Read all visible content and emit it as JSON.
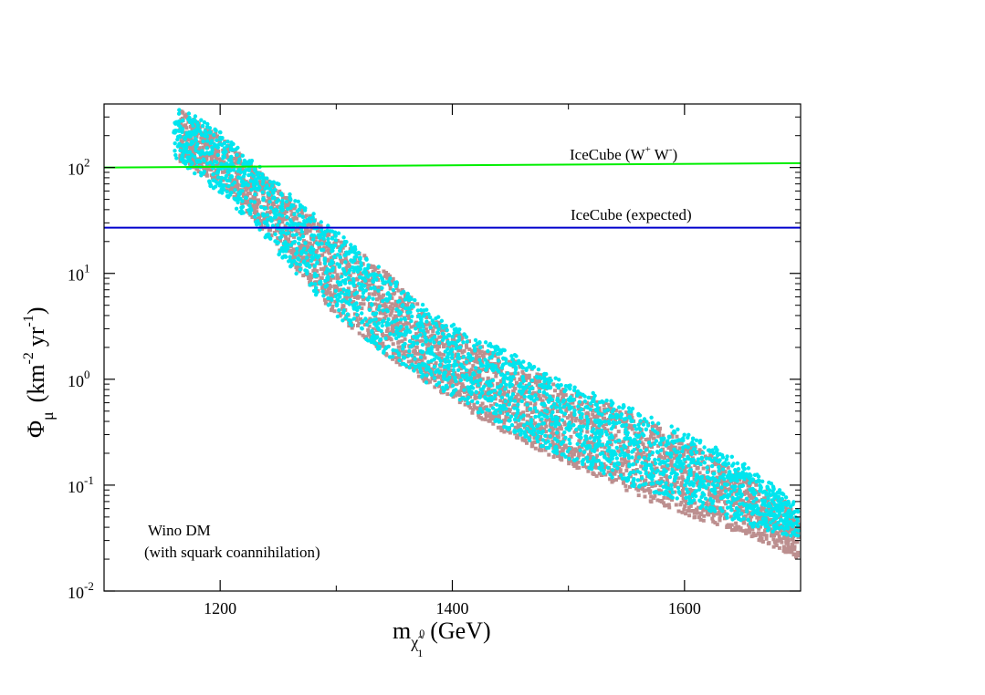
{
  "chart_data": {
    "type": "scatter",
    "xlim": [
      1100,
      1700
    ],
    "ylim_log10": [
      -2,
      2.6
    ],
    "y_scale": "log",
    "x_ticks": [
      {
        "value": 1200,
        "label": "1200"
      },
      {
        "value": 1400,
        "label": "1400"
      },
      {
        "value": 1600,
        "label": "1600"
      }
    ],
    "y_ticks": [
      {
        "exp": -2,
        "base": "10",
        "sup": "-2"
      },
      {
        "exp": -1,
        "base": "10",
        "sup": "-1"
      },
      {
        "exp": 0,
        "base": "10",
        "sup": "0"
      },
      {
        "exp": 1,
        "base": "10",
        "sup": "1"
      },
      {
        "exp": 2,
        "base": "10",
        "sup": "2"
      }
    ],
    "xlabel": {
      "main": "m",
      "sub": "χ̃",
      "sub_sup": "0",
      "sub_sub": "1",
      "unit": "(GeV)"
    },
    "ylabel": {
      "main": "Φ",
      "sub": "μ",
      "unit_open": "(km",
      "sup1": "-2",
      "mid": "yr",
      "sup2": "-1",
      "unit_close": ")"
    },
    "lines": [
      {
        "name": "IceCube (W+ W-)",
        "label_main": "IceCube (W",
        "label_sup1": "+",
        "label_mid": " W",
        "label_sup2": "-",
        "label_end": ")",
        "color": "#00ee00",
        "points": [
          [
            1100,
            100
          ],
          [
            1700,
            110
          ]
        ],
        "label_x": 1355,
        "label_y": 130
      },
      {
        "name": "IceCube (expected)",
        "label_main": "IceCube (expected)",
        "color": "#0000cc",
        "points": [
          [
            1100,
            27
          ],
          [
            1700,
            27
          ]
        ],
        "label_x": 1355,
        "label_y": 34
      }
    ],
    "series": [
      {
        "name": "Wino DM (brown)",
        "color": "#bc8f8f",
        "marker": "square",
        "band": [
          [
            1165,
            2.55,
            2.05
          ],
          [
            1200,
            2.3,
            1.85
          ],
          [
            1230,
            2.0,
            1.5
          ],
          [
            1260,
            1.7,
            1.1
          ],
          [
            1300,
            1.35,
            0.6
          ],
          [
            1340,
            1.05,
            0.25
          ],
          [
            1380,
            0.6,
            -0.05
          ],
          [
            1420,
            0.35,
            -0.35
          ],
          [
            1460,
            0.15,
            -0.6
          ],
          [
            1500,
            -0.08,
            -0.8
          ],
          [
            1540,
            -0.25,
            -1.0
          ],
          [
            1580,
            -0.45,
            -1.2
          ],
          [
            1620,
            -0.7,
            -1.35
          ],
          [
            1660,
            -0.95,
            -1.5
          ],
          [
            1700,
            -1.25,
            -1.7
          ]
        ]
      },
      {
        "name": "Wino DM (cyan)",
        "color": "#00e5ee",
        "marker": "circle",
        "band": [
          [
            1160,
            2.6,
            2.1
          ],
          [
            1200,
            2.35,
            1.75
          ],
          [
            1230,
            2.05,
            1.45
          ],
          [
            1260,
            1.75,
            1.05
          ],
          [
            1300,
            1.4,
            0.6
          ],
          [
            1340,
            1.05,
            0.25
          ],
          [
            1380,
            0.65,
            -0.05
          ],
          [
            1420,
            0.4,
            -0.3
          ],
          [
            1460,
            0.2,
            -0.55
          ],
          [
            1500,
            -0.05,
            -0.75
          ],
          [
            1540,
            -0.2,
            -0.95
          ],
          [
            1580,
            -0.4,
            -1.1
          ],
          [
            1620,
            -0.6,
            -1.25
          ],
          [
            1660,
            -0.85,
            -1.4
          ],
          [
            1700,
            -1.2,
            -1.5
          ]
        ]
      }
    ],
    "annotations": {
      "line1": "Wino DM",
      "line2": "(with squark coannihilation)"
    }
  }
}
